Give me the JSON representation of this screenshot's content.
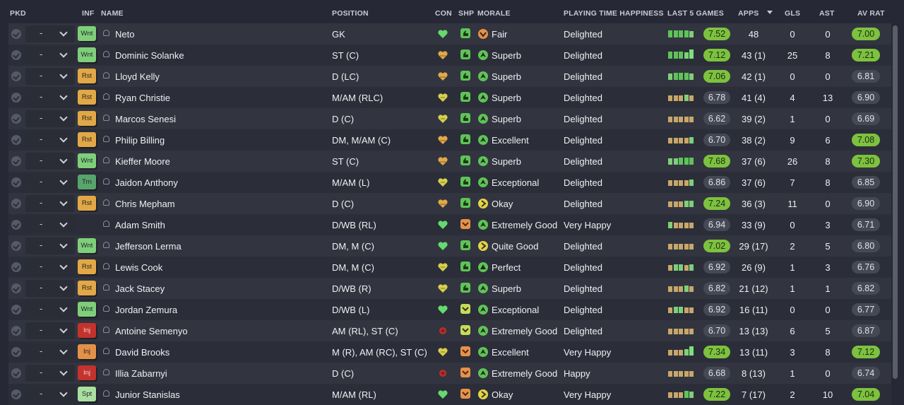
{
  "headers": {
    "pkd": "PKD",
    "inf": "INF",
    "name": "NAME",
    "position": "POSITION",
    "con": "CON",
    "shp": "SHP",
    "morale": "MORALE",
    "pth": "PLAYING TIME HAPPINESS",
    "last5": "LAST 5 GAMES",
    "apps": "APPS",
    "gls": "GLS",
    "ast": "AST",
    "avrat": "AV RAT"
  },
  "colors": {
    "good": "#7dc23f",
    "neutral": "#454955",
    "wanted": "#7fcf7a",
    "rested": "#e2a846",
    "injured": "#c4322d"
  },
  "players": [
    {
      "pkd": "-",
      "inf": "Wnt",
      "inf_type": "wnt",
      "name": "Neto",
      "position": "GK",
      "con": "green-heart",
      "shp": "g",
      "morale_icon": "o-down",
      "morale": "Fair",
      "pth": "Delighted",
      "l5": [
        3,
        3,
        3,
        3,
        2
      ],
      "last5": "7.52",
      "last5_hi": true,
      "apps": "48",
      "gls": "0",
      "ast": "0",
      "avrat": "7.00",
      "avrat_hi": true
    },
    {
      "pkd": "-",
      "inf": "Wnt",
      "inf_type": "wnt",
      "name": "Dominic Solanke",
      "position": "ST (C)",
      "con": "mixed-heart",
      "shp": "g",
      "morale_icon": "g-up",
      "morale": "Superb",
      "pth": "Delighted",
      "l5": [
        3,
        3,
        3,
        2,
        4
      ],
      "last5": "7.12",
      "last5_hi": true,
      "apps": "43 (1)",
      "gls": "25",
      "ast": "8",
      "avrat": "7.21",
      "avrat_hi": true
    },
    {
      "pkd": "-",
      "inf": "Rst",
      "inf_type": "rst",
      "name": "Lloyd Kelly",
      "position": "D (LC)",
      "con": "mixed-heart",
      "shp": "g",
      "morale_icon": "g-up",
      "morale": "Superb",
      "pth": "Delighted",
      "l5": [
        2,
        3,
        3,
        3,
        2
      ],
      "last5": "7.06",
      "last5_hi": true,
      "apps": "42 (1)",
      "gls": "0",
      "ast": "0",
      "avrat": "6.81",
      "avrat_hi": false
    },
    {
      "pkd": "-",
      "inf": "Rst",
      "inf_type": "rst",
      "name": "Ryan Christie",
      "position": "M/AM (RLC)",
      "con": "yellow-heart",
      "shp": "g",
      "morale_icon": "g-up",
      "morale": "Superb",
      "pth": "Delighted",
      "l5": [
        1,
        1,
        1,
        2,
        1
      ],
      "last5": "6.78",
      "last5_hi": false,
      "apps": "41 (4)",
      "gls": "4",
      "ast": "13",
      "avrat": "6.90",
      "avrat_hi": false
    },
    {
      "pkd": "-",
      "inf": "Rst",
      "inf_type": "rst",
      "name": "Marcos Senesi",
      "position": "D (C)",
      "con": "yellow-heart",
      "shp": "g",
      "morale_icon": "g-up",
      "morale": "Superb",
      "pth": "Delighted",
      "l5": [
        1,
        1,
        1,
        1,
        1
      ],
      "last5": "6.62",
      "last5_hi": false,
      "apps": "39 (2)",
      "gls": "1",
      "ast": "0",
      "avrat": "6.69",
      "avrat_hi": false
    },
    {
      "pkd": "-",
      "inf": "Rst",
      "inf_type": "rst",
      "name": "Philip Billing",
      "position": "DM, M/AM (C)",
      "con": "mixed-heart",
      "shp": "g",
      "morale_icon": "g-up",
      "morale": "Excellent",
      "pth": "Delighted",
      "l5": [
        1,
        1,
        1,
        1,
        2
      ],
      "last5": "6.70",
      "last5_hi": false,
      "apps": "38 (2)",
      "gls": "9",
      "ast": "6",
      "avrat": "7.08",
      "avrat_hi": true
    },
    {
      "pkd": "-",
      "inf": "Wnt",
      "inf_type": "wnt",
      "name": "Kieffer Moore",
      "position": "ST (C)",
      "con": "mixed-heart",
      "shp": "g",
      "morale_icon": "g-up",
      "morale": "Superb",
      "pth": "Delighted",
      "l5": [
        2,
        2,
        3,
        3,
        3
      ],
      "last5": "7.68",
      "last5_hi": true,
      "apps": "37 (6)",
      "gls": "26",
      "ast": "8",
      "avrat": "7.30",
      "avrat_hi": true
    },
    {
      "pkd": "-",
      "inf": "Trn",
      "inf_type": "trn",
      "name": "Jaidon Anthony",
      "position": "M/AM (L)",
      "con": "yellow-heart",
      "shp": "g",
      "morale_icon": "g-up",
      "morale": "Exceptional",
      "pth": "Delighted",
      "l5": [
        1,
        1,
        1,
        1,
        2
      ],
      "last5": "6.86",
      "last5_hi": false,
      "apps": "37 (6)",
      "gls": "7",
      "ast": "8",
      "avrat": "6.85",
      "avrat_hi": false
    },
    {
      "pkd": "-",
      "inf": "Rst",
      "inf_type": "rst",
      "name": "Chris Mepham",
      "position": "D (C)",
      "con": "mixed-heart",
      "shp": "g",
      "morale_icon": "y-right",
      "morale": "Okay",
      "pth": "Delighted",
      "l5": [
        1,
        1,
        1,
        2,
        2
      ],
      "last5": "7.24",
      "last5_hi": true,
      "apps": "36 (3)",
      "gls": "11",
      "ast": "0",
      "avrat": "6.90",
      "avrat_hi": false
    },
    {
      "pkd": "-",
      "inf": "",
      "inf_type": "none",
      "name": "Adam Smith",
      "position": "D/WB (RL)",
      "con": "green-heart",
      "shp": "o",
      "morale_icon": "g-up",
      "morale": "Extremely Good",
      "pth": "Very Happy",
      "l5": [
        2,
        1,
        1,
        1,
        1
      ],
      "last5": "6.94",
      "last5_hi": false,
      "apps": "33 (9)",
      "gls": "0",
      "ast": "3",
      "avrat": "6.71",
      "avrat_hi": false
    },
    {
      "pkd": "-",
      "inf": "Wnt",
      "inf_type": "wnt",
      "name": "Jefferson Lerma",
      "position": "DM, M (C)",
      "con": "green-heart",
      "shp": "g",
      "morale_icon": "y-right",
      "morale": "Quite Good",
      "pth": "Delighted",
      "l5": [
        1,
        1,
        1,
        1,
        1
      ],
      "last5": "7.02",
      "last5_hi": true,
      "apps": "29 (17)",
      "gls": "2",
      "ast": "5",
      "avrat": "6.80",
      "avrat_hi": false
    },
    {
      "pkd": "-",
      "inf": "Rst",
      "inf_type": "rst",
      "name": "Lewis Cook",
      "position": "DM, M (C)",
      "con": "yellow-heart",
      "shp": "g",
      "morale_icon": "g-up2",
      "morale": "Perfect",
      "pth": "Delighted",
      "l5": [
        1,
        2,
        2,
        1,
        2
      ],
      "last5": "6.92",
      "last5_hi": false,
      "apps": "26 (9)",
      "gls": "1",
      "ast": "3",
      "avrat": "6.76",
      "avrat_hi": false
    },
    {
      "pkd": "-",
      "inf": "Rst",
      "inf_type": "rst",
      "name": "Jack Stacey",
      "position": "D/WB (R)",
      "con": "yellow-heart",
      "shp": "g",
      "morale_icon": "g-up",
      "morale": "Superb",
      "pth": "Delighted",
      "l5": [
        1,
        1,
        1,
        2,
        1
      ],
      "last5": "6.82",
      "last5_hi": false,
      "apps": "21 (12)",
      "gls": "1",
      "ast": "1",
      "avrat": "6.82",
      "avrat_hi": false
    },
    {
      "pkd": "-",
      "inf": "Wnt",
      "inf_type": "wnt",
      "name": "Jordan Zemura",
      "position": "D/WB (L)",
      "con": "green-heart",
      "shp": "y",
      "morale_icon": "g-up",
      "morale": "Exceptional",
      "pth": "Delighted",
      "l5": [
        1,
        2,
        2,
        1,
        1
      ],
      "last5": "6.92",
      "last5_hi": false,
      "apps": "16 (11)",
      "gls": "0",
      "ast": "0",
      "avrat": "6.77",
      "avrat_hi": false
    },
    {
      "pkd": "-",
      "inf": "Inj",
      "inf_type": "inj",
      "name": "Antoine Semenyo",
      "position": "AM (RL), ST (C)",
      "con": "injury",
      "shp": "y",
      "morale_icon": "g-up",
      "morale": "Extremely Good",
      "pth": "Delighted",
      "l5": [
        1,
        1,
        1,
        1,
        1
      ],
      "last5": "6.70",
      "last5_hi": false,
      "apps": "13 (13)",
      "gls": "6",
      "ast": "5",
      "avrat": "6.87",
      "avrat_hi": false
    },
    {
      "pkd": "-",
      "inf": "Inj",
      "inf_type": "inj2",
      "name": "David Brooks",
      "position": "M (R), AM (RC), ST (C)",
      "con": "yellow-heart",
      "shp": "o",
      "morale_icon": "g-up",
      "morale": "Excellent",
      "pth": "Very Happy",
      "l5": [
        1,
        1,
        1,
        2,
        4
      ],
      "last5": "7.34",
      "last5_hi": true,
      "apps": "13 (11)",
      "gls": "3",
      "ast": "8",
      "avrat": "7.12",
      "avrat_hi": true
    },
    {
      "pkd": "-",
      "inf": "Inj",
      "inf_type": "inj",
      "name": "Illia Zabarnyi",
      "position": "D (C)",
      "con": "injury",
      "shp": "o",
      "morale_icon": "g-up",
      "morale": "Extremely Good",
      "pth": "Happy",
      "l5": [
        1,
        1,
        1,
        1,
        1
      ],
      "last5": "6.68",
      "last5_hi": false,
      "apps": "8 (13)",
      "gls": "1",
      "ast": "0",
      "avrat": "6.74",
      "avrat_hi": false
    },
    {
      "pkd": "-",
      "inf": "Spt",
      "inf_type": "spt",
      "name": "Junior Stanislas",
      "position": "M/AM (RL)",
      "con": "green-heart",
      "shp": "o",
      "morale_icon": "y-right",
      "morale": "Okay",
      "pth": "Very Happy",
      "l5": [
        1,
        1,
        1,
        3,
        2
      ],
      "last5": "7.22",
      "last5_hi": true,
      "apps": "7 (17)",
      "gls": "2",
      "ast": "10",
      "avrat": "7.04",
      "avrat_hi": true
    }
  ]
}
